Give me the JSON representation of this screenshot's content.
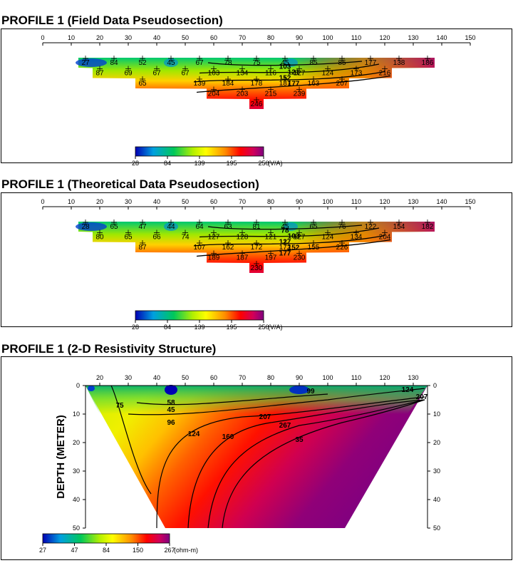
{
  "chart_data": [
    {
      "type": "heatmap",
      "subtype": "pseudosection",
      "title": "PROFILE 1 (Field Data Pseudosection)",
      "x_ticks": [
        0,
        10,
        20,
        30,
        40,
        50,
        60,
        70,
        80,
        90,
        100,
        110,
        120,
        130,
        140,
        150
      ],
      "xlim": [
        0,
        150
      ],
      "colorbar": {
        "ticks": [
          "28",
          "84",
          "139",
          "195",
          "250"
        ],
        "unit": "(V/A)"
      },
      "contour_levels": [
        "103",
        "121",
        "152",
        "177"
      ],
      "points": [
        {
          "x": 15,
          "n": 1,
          "v": "27"
        },
        {
          "x": 25,
          "n": 1,
          "v": "84"
        },
        {
          "x": 35,
          "n": 1,
          "v": "52"
        },
        {
          "x": 45,
          "n": 1,
          "v": "45"
        },
        {
          "x": 55,
          "n": 1,
          "v": "67"
        },
        {
          "x": 65,
          "n": 1,
          "v": "78"
        },
        {
          "x": 75,
          "n": 1,
          "v": "75"
        },
        {
          "x": 85,
          "n": 1,
          "v": "45"
        },
        {
          "x": 95,
          "n": 1,
          "v": "85"
        },
        {
          "x": 105,
          "n": 1,
          "v": "85"
        },
        {
          "x": 115,
          "n": 1,
          "v": "177"
        },
        {
          "x": 125,
          "n": 1,
          "v": "138"
        },
        {
          "x": 135,
          "n": 1,
          "v": "186"
        },
        {
          "x": 20,
          "n": 2,
          "v": "87"
        },
        {
          "x": 30,
          "n": 2,
          "v": "69"
        },
        {
          "x": 40,
          "n": 2,
          "v": "67"
        },
        {
          "x": 50,
          "n": 2,
          "v": "67"
        },
        {
          "x": 60,
          "n": 2,
          "v": "103"
        },
        {
          "x": 70,
          "n": 2,
          "v": "134"
        },
        {
          "x": 80,
          "n": 2,
          "v": "116"
        },
        {
          "x": 90,
          "n": 2,
          "v": "127"
        },
        {
          "x": 100,
          "n": 2,
          "v": "124"
        },
        {
          "x": 110,
          "n": 2,
          "v": "173"
        },
        {
          "x": 120,
          "n": 2,
          "v": "216"
        },
        {
          "x": 35,
          "n": 3,
          "v": "65"
        },
        {
          "x": 55,
          "n": 3,
          "v": "139"
        },
        {
          "x": 65,
          "n": 3,
          "v": "184"
        },
        {
          "x": 75,
          "n": 3,
          "v": "178"
        },
        {
          "x": 85,
          "n": 3,
          "v": "187"
        },
        {
          "x": 95,
          "n": 3,
          "v": "163"
        },
        {
          "x": 105,
          "n": 3,
          "v": "207"
        },
        {
          "x": 60,
          "n": 4,
          "v": "204"
        },
        {
          "x": 70,
          "n": 4,
          "v": "203"
        },
        {
          "x": 80,
          "n": 4,
          "v": "215"
        },
        {
          "x": 90,
          "n": 4,
          "v": "239"
        },
        {
          "x": 75,
          "n": 5,
          "v": "246"
        }
      ]
    },
    {
      "type": "heatmap",
      "subtype": "pseudosection",
      "title": "PROFILE 1 (Theoretical Data Pseudosection)",
      "x_ticks": [
        0,
        10,
        20,
        30,
        40,
        50,
        60,
        70,
        80,
        90,
        100,
        110,
        120,
        130,
        140,
        150
      ],
      "xlim": [
        0,
        150
      ],
      "colorbar": {
        "ticks": [
          "28",
          "84",
          "139",
          "195",
          "250"
        ],
        "unit": "(V/A)"
      },
      "contour_levels": [
        "78",
        "103",
        "127",
        "152",
        "177"
      ],
      "points": [
        {
          "x": 15,
          "n": 1,
          "v": "28"
        },
        {
          "x": 25,
          "n": 1,
          "v": "65"
        },
        {
          "x": 35,
          "n": 1,
          "v": "47"
        },
        {
          "x": 45,
          "n": 1,
          "v": "44"
        },
        {
          "x": 55,
          "n": 1,
          "v": "64"
        },
        {
          "x": 65,
          "n": 1,
          "v": "63"
        },
        {
          "x": 75,
          "n": 1,
          "v": "81"
        },
        {
          "x": 85,
          "n": 1,
          "v": "45"
        },
        {
          "x": 95,
          "n": 1,
          "v": "65"
        },
        {
          "x": 105,
          "n": 1,
          "v": "76"
        },
        {
          "x": 115,
          "n": 1,
          "v": "122"
        },
        {
          "x": 125,
          "n": 1,
          "v": "154"
        },
        {
          "x": 135,
          "n": 1,
          "v": "182"
        },
        {
          "x": 20,
          "n": 2,
          "v": "80"
        },
        {
          "x": 30,
          "n": 2,
          "v": "65"
        },
        {
          "x": 40,
          "n": 2,
          "v": "66"
        },
        {
          "x": 50,
          "n": 2,
          "v": "74"
        },
        {
          "x": 60,
          "n": 2,
          "v": "127"
        },
        {
          "x": 70,
          "n": 2,
          "v": "128"
        },
        {
          "x": 80,
          "n": 2,
          "v": "121"
        },
        {
          "x": 90,
          "n": 2,
          "v": "127"
        },
        {
          "x": 100,
          "n": 2,
          "v": "124"
        },
        {
          "x": 110,
          "n": 2,
          "v": "134"
        },
        {
          "x": 120,
          "n": 2,
          "v": "204"
        },
        {
          "x": 35,
          "n": 3,
          "v": "87"
        },
        {
          "x": 55,
          "n": 3,
          "v": "107"
        },
        {
          "x": 65,
          "n": 3,
          "v": "162"
        },
        {
          "x": 75,
          "n": 3,
          "v": "172"
        },
        {
          "x": 85,
          "n": 3,
          "v": "172"
        },
        {
          "x": 95,
          "n": 3,
          "v": "155"
        },
        {
          "x": 105,
          "n": 3,
          "v": "226"
        },
        {
          "x": 60,
          "n": 4,
          "v": "189"
        },
        {
          "x": 70,
          "n": 4,
          "v": "187"
        },
        {
          "x": 80,
          "n": 4,
          "v": "197"
        },
        {
          "x": 90,
          "n": 4,
          "v": "230"
        },
        {
          "x": 75,
          "n": 5,
          "v": "230"
        }
      ]
    },
    {
      "type": "heatmap",
      "subtype": "resistivity-section",
      "title": "PROFILE 1 (2-D Resistivity Structure)",
      "ylabel": "DEPTH (METER)",
      "x_ticks": [
        20,
        30,
        40,
        50,
        60,
        70,
        80,
        90,
        100,
        110,
        120,
        130
      ],
      "y_ticks": [
        0,
        10,
        20,
        30,
        40,
        50
      ],
      "xlim": [
        15,
        135
      ],
      "ylim": [
        0,
        50
      ],
      "colorbar": {
        "ticks": [
          "27",
          "47",
          "84",
          "150",
          "267"
        ],
        "unit": "(ohm-m)"
      },
      "contour_labels": [
        "75",
        "58",
        "45",
        "96",
        "124",
        "160",
        "207",
        "267",
        "35",
        "99",
        "124",
        "207"
      ]
    }
  ]
}
